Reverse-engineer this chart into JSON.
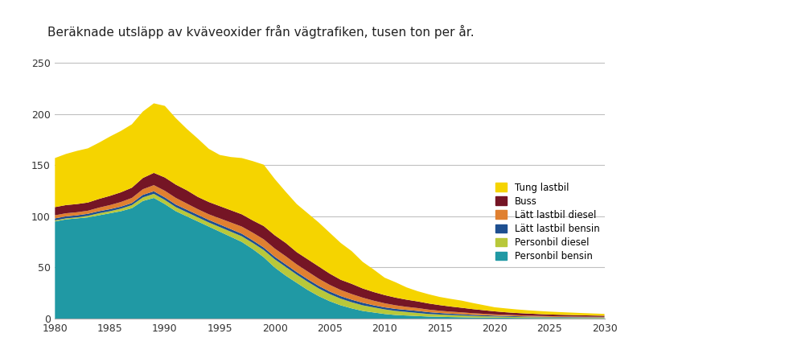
{
  "title": "Beräknade utsläpp av kväveoxider från vägtrafiken, tusen ton per år.",
  "years": [
    1980,
    1981,
    1982,
    1983,
    1984,
    1985,
    1986,
    1987,
    1988,
    1989,
    1990,
    1991,
    1992,
    1993,
    1994,
    1995,
    1996,
    1997,
    1998,
    1999,
    2000,
    2001,
    2002,
    2003,
    2004,
    2005,
    2006,
    2007,
    2008,
    2009,
    2010,
    2011,
    2012,
    2013,
    2014,
    2015,
    2016,
    2017,
    2018,
    2019,
    2020,
    2021,
    2022,
    2023,
    2024,
    2025,
    2026,
    2027,
    2028,
    2029,
    2030
  ],
  "series": {
    "Personbil bensin": [
      95,
      97,
      98,
      99,
      101,
      103,
      105,
      108,
      115,
      118,
      112,
      105,
      100,
      95,
      90,
      85,
      80,
      75,
      68,
      60,
      50,
      42,
      35,
      28,
      22,
      17,
      13,
      10,
      7.5,
      6,
      4.5,
      3.5,
      3,
      2.5,
      2,
      1.8,
      1.5,
      1.3,
      1.1,
      1.0,
      0.9,
      0.8,
      0.7,
      0.65,
      0.6,
      0.55,
      0.5,
      0.48,
      0.45,
      0.43,
      0.4
    ],
    "Personbil diesel": [
      1,
      1,
      1,
      1.5,
      2,
      2,
      2.5,
      3,
      3.5,
      4,
      4,
      4,
      4,
      4,
      4,
      4.5,
      5,
      5.5,
      6,
      7,
      8,
      8.5,
      8,
      8,
      7.5,
      7,
      6.5,
      6,
      5.5,
      5,
      4.5,
      4,
      3.5,
      3,
      2.5,
      2.2,
      2,
      1.8,
      1.5,
      1.3,
      1.1,
      1,
      0.9,
      0.8,
      0.7,
      0.65,
      0.6,
      0.55,
      0.5,
      0.47,
      0.45
    ],
    "Lätt lastbil bensin": [
      2,
      2,
      2,
      2,
      2,
      2,
      2,
      2,
      2.5,
      2.5,
      2.5,
      2.5,
      2.5,
      2.5,
      2.5,
      2.5,
      2.5,
      2.5,
      2.5,
      2.5,
      2.5,
      2.5,
      2.5,
      2.5,
      2.5,
      2.5,
      2.5,
      2.5,
      2.5,
      2,
      2,
      2,
      2,
      2,
      1.8,
      1.5,
      1.3,
      1.2,
      1.1,
      1,
      0.9,
      0.8,
      0.7,
      0.6,
      0.55,
      0.5,
      0.48,
      0.45,
      0.42,
      0.4,
      0.38
    ],
    "Lätt lastbil diesel": [
      3,
      3,
      3,
      3,
      3.5,
      4,
      4.5,
      5,
      5.5,
      6,
      6.5,
      6.5,
      6,
      5.5,
      5.5,
      6,
      6.5,
      7,
      7.5,
      8,
      8,
      8,
      7.5,
      7.5,
      7,
      6.5,
      6,
      5.5,
      5,
      4.5,
      4,
      3.5,
      3,
      2.8,
      2.5,
      2.2,
      2,
      1.8,
      1.6,
      1.4,
      1.2,
      1.1,
      1.0,
      0.9,
      0.8,
      0.72,
      0.65,
      0.6,
      0.55,
      0.5,
      0.47
    ],
    "Buss": [
      8,
      8,
      8,
      8,
      8.5,
      9,
      9.5,
      10,
      11,
      12,
      13,
      13,
      13,
      12,
      12,
      12,
      12,
      12,
      12,
      13,
      13,
      13,
      12,
      12,
      12,
      11,
      10,
      10,
      9,
      8.5,
      8,
      7.5,
      7,
      6.5,
      6,
      5.5,
      5,
      4.5,
      4,
      3.5,
      3,
      2.5,
      2.2,
      2,
      1.8,
      1.6,
      1.5,
      1.4,
      1.3,
      1.2,
      1.1
    ],
    "Tung lastbil": [
      48,
      50,
      52,
      53,
      55,
      58,
      60,
      62,
      65,
      68,
      70,
      65,
      60,
      57,
      52,
      50,
      52,
      55,
      58,
      60,
      55,
      50,
      47,
      45,
      43,
      40,
      36,
      32,
      26,
      22,
      17,
      15,
      12,
      10,
      9,
      8,
      7.5,
      7,
      6,
      5,
      4,
      3.8,
      3.5,
      3.2,
      3,
      2.8,
      2.6,
      2.4,
      2.2,
      2.0,
      1.8
    ]
  },
  "colors": {
    "Personbil bensin": "#2099a4",
    "Personbil diesel": "#b8c83a",
    "Lätt lastbil bensin": "#1e4f90",
    "Lätt lastbil diesel": "#e08030",
    "Buss": "#751525",
    "Tung lastbil": "#f5d400"
  },
  "ylim": [
    0,
    270
  ],
  "yticks": [
    0,
    50,
    100,
    150,
    200,
    250
  ],
  "xlim": [
    1980,
    2030
  ],
  "xticks": [
    1980,
    1985,
    1990,
    1995,
    2000,
    2005,
    2010,
    2015,
    2020,
    2025,
    2030
  ],
  "background_color": "#ffffff",
  "grid_color": "#c0c0c0",
  "title_fontsize": 11,
  "legend_order": [
    "Tung lastbil",
    "Buss",
    "Lätt lastbil diesel",
    "Lätt lastbil bensin",
    "Personbil diesel",
    "Personbil bensin"
  ]
}
